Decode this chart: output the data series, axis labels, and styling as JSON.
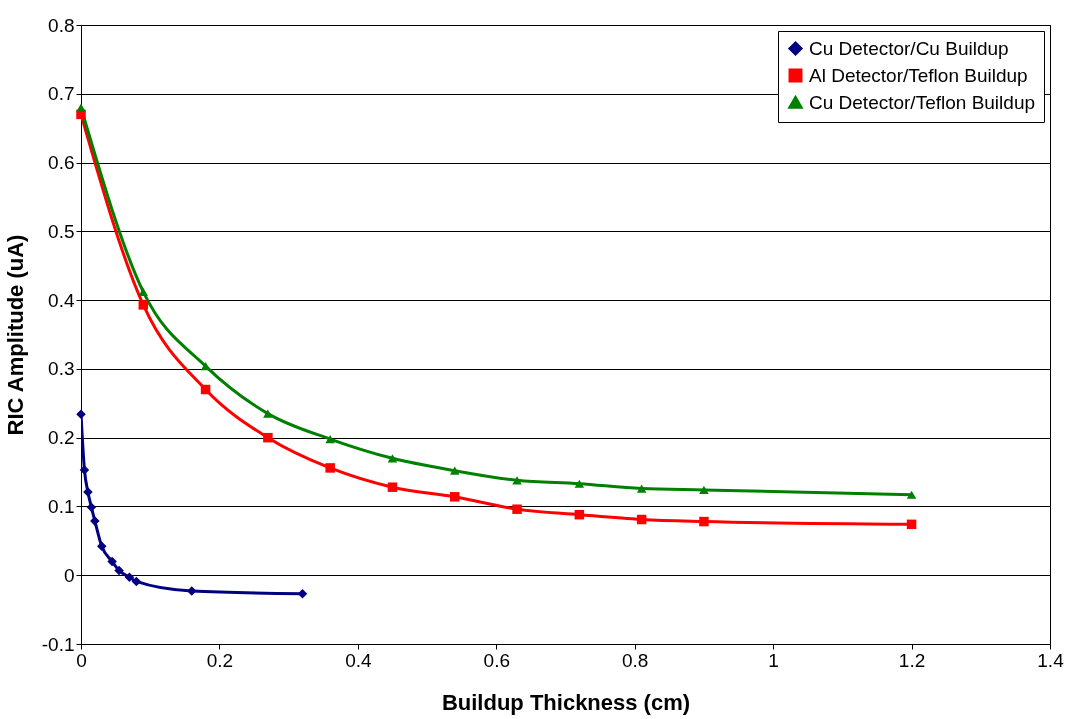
{
  "chart_data": {
    "type": "line",
    "xlabel": "Buildup Thickness (cm)",
    "ylabel": "RIC Amplitude (uA)",
    "xlim": [
      0,
      1.4
    ],
    "xticks": [
      0,
      0.2,
      0.4,
      0.6,
      0.8,
      1,
      1.2,
      1.4
    ],
    "ylim": [
      -0.1,
      0.8
    ],
    "yticks": [
      -0.1,
      0,
      0.1,
      0.2,
      0.3,
      0.4,
      0.5,
      0.6,
      0.7,
      0.8
    ],
    "grid": "y",
    "legend": "top right",
    "series": [
      {
        "name": "Cu Detector/Cu Buildup",
        "color": "#000080",
        "marker": "diamond",
        "x": [
          0,
          0.005,
          0.01,
          0.015,
          0.02,
          0.03,
          0.045,
          0.055,
          0.07,
          0.08,
          0.16,
          0.32
        ],
        "values": [
          0.234,
          0.153,
          0.121,
          0.099,
          0.079,
          0.042,
          0.02,
          0.007,
          -0.003,
          -0.009,
          -0.023,
          -0.027
        ]
      },
      {
        "name": "Al Detector/Teflon Buildup",
        "color": "#ff0000",
        "marker": "square",
        "x": [
          0,
          0.09,
          0.18,
          0.27,
          0.36,
          0.45,
          0.54,
          0.63,
          0.72,
          0.81,
          0.9,
          1.2
        ],
        "values": [
          0.67,
          0.393,
          0.27,
          0.2,
          0.156,
          0.128,
          0.114,
          0.096,
          0.088,
          0.081,
          0.078,
          0.074
        ]
      },
      {
        "name": "Cu Detector/Teflon Buildup",
        "color": "#008000",
        "marker": "triangle",
        "x": [
          0,
          0.09,
          0.18,
          0.27,
          0.36,
          0.45,
          0.54,
          0.63,
          0.72,
          0.81,
          0.9,
          1.2
        ],
        "values": [
          0.68,
          0.412,
          0.304,
          0.235,
          0.198,
          0.17,
          0.152,
          0.138,
          0.133,
          0.126,
          0.124,
          0.117
        ]
      }
    ]
  }
}
